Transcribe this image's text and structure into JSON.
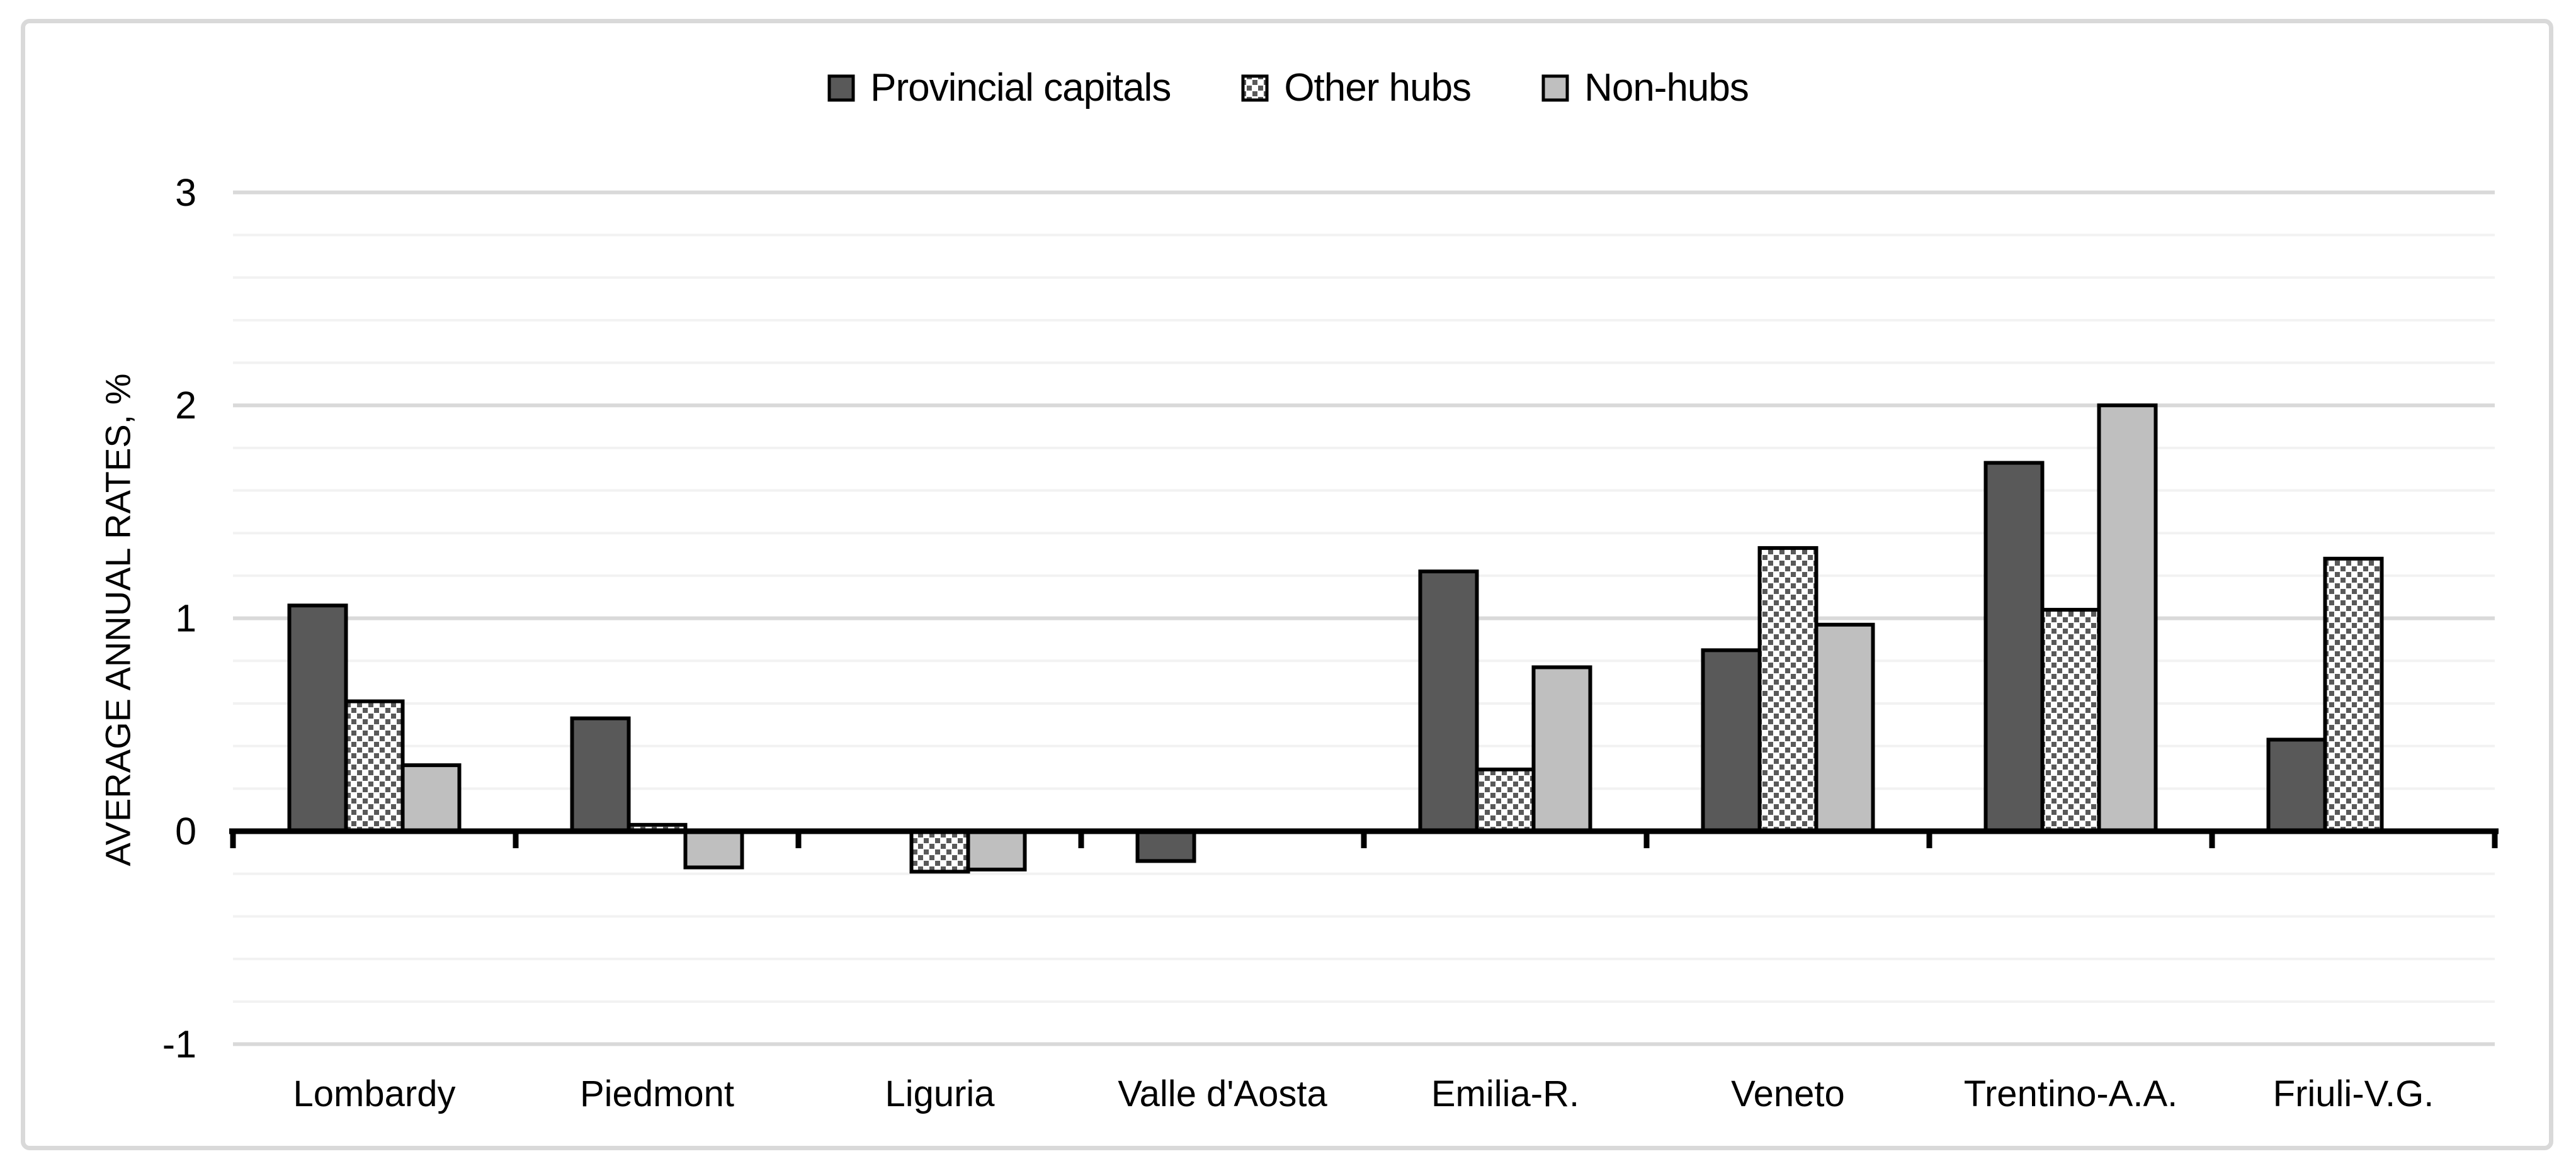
{
  "chart_data": {
    "type": "bar",
    "title": "",
    "categories": [
      "Lombardy",
      "Piedmont",
      "Liguria",
      "Valle d'Aosta",
      "Emilia-R.",
      "Veneto",
      "Trentino-A.A.",
      "Friuli-V.G."
    ],
    "series": [
      {
        "name": "Provincial capitals",
        "fill_style": "solid",
        "color": "#595959",
        "values": [
          1.06,
          0.53,
          0,
          -0.14,
          1.22,
          0.85,
          1.73,
          0.43
        ]
      },
      {
        "name": "Other hubs",
        "fill_style": "diagonal-hatch",
        "color": "#595959",
        "values": [
          0.61,
          0.03,
          -0.19,
          0,
          0.29,
          1.33,
          1.04,
          1.28
        ]
      },
      {
        "name": "Non-hubs",
        "fill_style": "solid",
        "color": "#bfbfbf",
        "values": [
          0.31,
          -0.17,
          -0.18,
          0,
          0.77,
          0.97,
          2.0,
          0
        ]
      }
    ],
    "xlabel": "",
    "ylabel": "AVERAGE ANNUAL RATES, %",
    "ylim": [
      -1,
      3
    ],
    "yticks": [
      3,
      2,
      1,
      0,
      -1
    ],
    "ytick_labels": [
      "3",
      "2",
      "1",
      "0",
      "-1"
    ],
    "minor_grid_step": 0.2,
    "grid": true,
    "legend_position": "top-center",
    "colors": {
      "bar_outline": "#000000",
      "axis_line": "#000000",
      "major_gridline": "#d9d9d9",
      "minor_gridline": "#f2f2f2",
      "frame_border": "#d9d9d9",
      "hatch_square": "#595959",
      "hatch_background": "#ffffff"
    }
  }
}
